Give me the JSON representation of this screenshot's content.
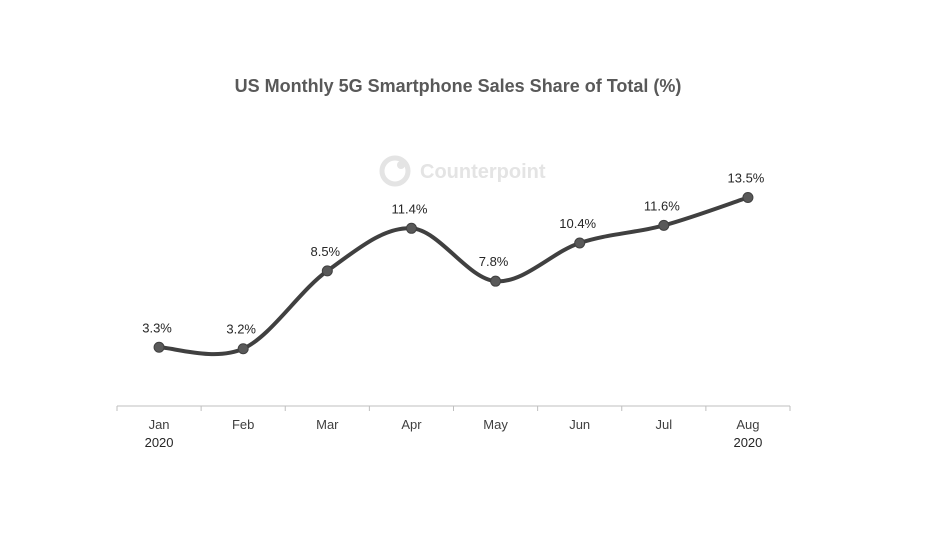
{
  "chart_data": {
    "type": "line",
    "title": "US Monthly 5G Smartphone Sales Share of Total (%)",
    "categories": [
      "Jan",
      "Feb",
      "Mar",
      "Apr",
      "May",
      "Jun",
      "Jul",
      "Aug"
    ],
    "year_labels": [
      "2020",
      "",
      "",
      "",
      "",
      "",
      "",
      "2020"
    ],
    "values": [
      3.3,
      3.2,
      8.5,
      11.4,
      7.8,
      10.4,
      11.6,
      13.5
    ],
    "data_labels": [
      "3.3%",
      "3.2%",
      "8.5%",
      "11.4%",
      "7.8%",
      "10.4%",
      "11.6%",
      "13.5%"
    ],
    "xlabel": "",
    "ylabel": "",
    "ylim": [
      -0.7,
      13.6
    ],
    "grid": false,
    "legend": "none",
    "series_color": "#404040",
    "watermark": "Counterpoint"
  }
}
